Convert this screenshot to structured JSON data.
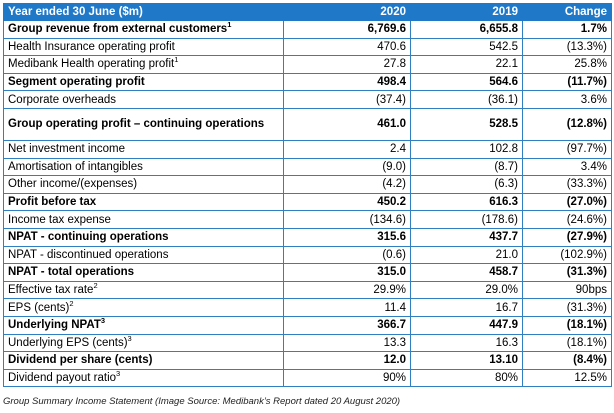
{
  "table": {
    "headers": [
      "Year ended 30 June ($m)",
      "2020",
      "2019",
      "Change"
    ],
    "rows": [
      {
        "label": "Group revenue from external customers",
        "sup": "1",
        "v2020": "6,769.6",
        "v2019": "6,655.8",
        "change": "1.7%",
        "bold": true
      },
      {
        "label": "Health Insurance operating profit",
        "sup": "",
        "v2020": "470.6",
        "v2019": "542.5",
        "change": "(13.3%)",
        "bold": false
      },
      {
        "label": "Medibank Health operating profit",
        "sup": "1",
        "v2020": "27.8",
        "v2019": "22.1",
        "change": "25.8%",
        "bold": false
      },
      {
        "label": "Segment operating profit",
        "sup": "",
        "v2020": "498.4",
        "v2019": "564.6",
        "change": "(11.7%)",
        "bold": true
      },
      {
        "label": "Corporate overheads",
        "sup": "",
        "v2020": "(37.4)",
        "v2019": "(36.1)",
        "change": "3.6%",
        "bold": false
      },
      {
        "label": "Group operating profit – continuing operations",
        "sup": "",
        "v2020": "461.0",
        "v2019": "528.5",
        "change": "(12.8%)",
        "bold": true,
        "tall": true
      },
      {
        "label": "Net investment income",
        "sup": "",
        "v2020": "2.4",
        "v2019": "102.8",
        "change": "(97.7%)",
        "bold": false
      },
      {
        "label": "Amortisation of intangibles",
        "sup": "",
        "v2020": "(9.0)",
        "v2019": "(8.7)",
        "change": "3.4%",
        "bold": false
      },
      {
        "label": "Other income/(expenses)",
        "sup": "",
        "v2020": "(4.2)",
        "v2019": "(6.3)",
        "change": "(33.3%)",
        "bold": false
      },
      {
        "label": "Profit before tax",
        "sup": "",
        "v2020": "450.2",
        "v2019": "616.3",
        "change": "(27.0%)",
        "bold": true
      },
      {
        "label": "Income tax expense",
        "sup": "",
        "v2020": "(134.6)",
        "v2019": "(178.6)",
        "change": "(24.6%)",
        "bold": false
      },
      {
        "label": "NPAT - continuing operations",
        "sup": "",
        "v2020": "315.6",
        "v2019": "437.7",
        "change": "(27.9%)",
        "bold": true
      },
      {
        "label": "NPAT - discontinued operations",
        "sup": "",
        "v2020": "(0.6)",
        "v2019": "21.0",
        "change": "(102.9%)",
        "bold": false
      },
      {
        "label": "NPAT - total operations",
        "sup": "",
        "v2020": "315.0",
        "v2019": "458.7",
        "change": "(31.3%)",
        "bold": true
      },
      {
        "label": "Effective tax rate",
        "sup": "2",
        "v2020": "29.9%",
        "v2019": "29.0%",
        "change": "90bps",
        "bold": false
      },
      {
        "label": "EPS (cents)",
        "sup": "2",
        "v2020": "11.4",
        "v2019": "16.7",
        "change": "(31.3%)",
        "bold": false
      },
      {
        "label": "Underlying NPAT",
        "sup": "3",
        "v2020": "366.7",
        "v2019": "447.9",
        "change": "(18.1%)",
        "bold": true
      },
      {
        "label": "Underlying EPS (cents)",
        "sup": "3",
        "v2020": "13.3",
        "v2019": "16.3",
        "change": "(18.1%)",
        "bold": false
      },
      {
        "label": "Dividend per share (cents)",
        "sup": "",
        "v2020": "12.0",
        "v2019": "13.10",
        "change": "(8.4%)",
        "bold": true
      },
      {
        "label": "Dividend payout ratio",
        "sup": "3",
        "v2020": "90%",
        "v2019": "80%",
        "change": "12.5%",
        "bold": false
      }
    ]
  },
  "caption": "Group Summary Income Statement (Image Source: Medibank’s Report dated 20 August 2020)",
  "colors": {
    "header_bg": "#1f78c8",
    "border": "#2f7fc1"
  }
}
